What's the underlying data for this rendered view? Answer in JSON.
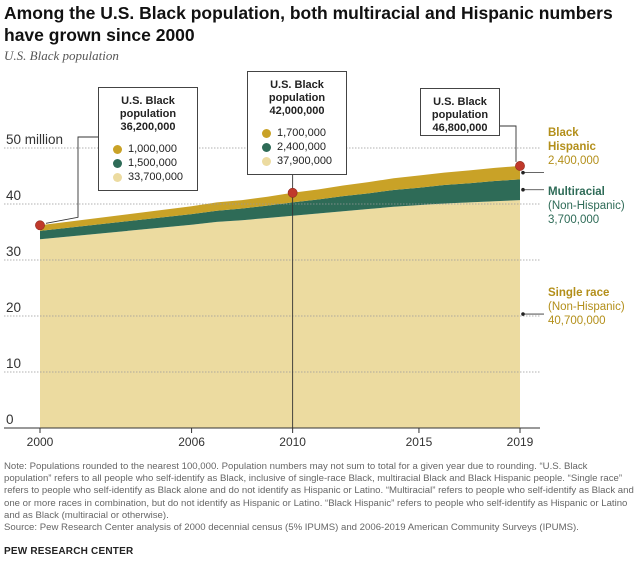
{
  "header": {
    "title": "Among the U.S. Black population, both multiracial and Hispanic numbers have grown since 2000",
    "subtitle": "U.S. Black population"
  },
  "chart_data": {
    "type": "area",
    "stacked": true,
    "x": [
      2000,
      2006,
      2007,
      2008,
      2009,
      2010,
      2011,
      2012,
      2013,
      2014,
      2015,
      2016,
      2017,
      2018,
      2019
    ],
    "series": [
      {
        "name": "Single race (Non-Hispanic)",
        "color": "#ecdba0",
        "values": [
          33.7,
          36.3,
          36.8,
          37.1,
          37.5,
          37.9,
          38.3,
          38.7,
          39.1,
          39.5,
          39.8,
          40.1,
          40.3,
          40.5,
          40.7
        ]
      },
      {
        "name": "Multiracial (Non-Hispanic)",
        "color": "#2e6b57",
        "values": [
          1.5,
          1.9,
          2.0,
          2.1,
          2.2,
          2.4,
          2.5,
          2.7,
          2.8,
          3.0,
          3.1,
          3.3,
          3.4,
          3.6,
          3.7
        ]
      },
      {
        "name": "Black Hispanic",
        "color": "#c9a227",
        "values": [
          1.0,
          1.4,
          1.5,
          1.5,
          1.6,
          1.7,
          1.8,
          1.9,
          2.0,
          2.1,
          2.2,
          2.2,
          2.3,
          2.35,
          2.4
        ]
      }
    ],
    "xticks": [
      "2000",
      "2006",
      "2010",
      "2015",
      "2019"
    ],
    "yticks": [
      "0",
      "10",
      "20",
      "30",
      "40",
      "50 million"
    ],
    "ylim": [
      0,
      50
    ],
    "xlim": [
      2000,
      2019
    ],
    "grid": true,
    "callouts": [
      {
        "year": "2000",
        "head": [
          "U.S. Black",
          "population",
          "36,200,000"
        ],
        "rows": [
          {
            "label": "1,000,000",
            "color": "#c9a227"
          },
          {
            "label": "1,500,000",
            "color": "#2e6b57"
          },
          {
            "label": "33,700,000",
            "color": "#ecdba0"
          }
        ]
      },
      {
        "year": "2010",
        "head": [
          "U.S. Black",
          "population",
          "42,000,000"
        ],
        "rows": [
          {
            "label": "1,700,000",
            "color": "#c9a227"
          },
          {
            "label": "2,400,000",
            "color": "#2e6b57"
          },
          {
            "label": "37,900,000",
            "color": "#ecdba0"
          }
        ]
      },
      {
        "year": "2019",
        "head": [
          "U.S. Black",
          "population",
          "46,800,000"
        ],
        "rows": []
      }
    ],
    "side_labels": [
      {
        "name": "Black Hispanic",
        "qualifier": "",
        "value": "2,400,000",
        "color": "#b38f1a"
      },
      {
        "name": "Multiracial",
        "qualifier": "(Non-Hispanic)",
        "value": "3,700,000",
        "color": "#2e6b57"
      },
      {
        "name": "Single race",
        "qualifier": "(Non-Hispanic)",
        "value": "40,700,000",
        "color": "#b38f1a"
      }
    ]
  },
  "footer": {
    "note": "Note: Populations rounded to the nearest 100,000. Population numbers may not sum to total for a given year due to rounding. “U.S. Black population” refers to all people who self-identify as Black, inclusive of single-race Black, multiracial Black and Black Hispanic people. “Single race” refers to people who self-identify as Black alone and do not identify as Hispanic or Latino. “Multiracial” refers to people who self-identify as Black and one or more races in combination, but do not identify as Hispanic or Latino. “Black Hispanic” refers to people who self-identify as Hispanic or Latino and as Black (multiracial or otherwise).",
    "source": "Source: Pew Research Center analysis of 2000 decennial census (5% IPUMS) and 2006-2019 American Community Surveys (IPUMS).",
    "brand": "PEW RESEARCH CENTER"
  }
}
